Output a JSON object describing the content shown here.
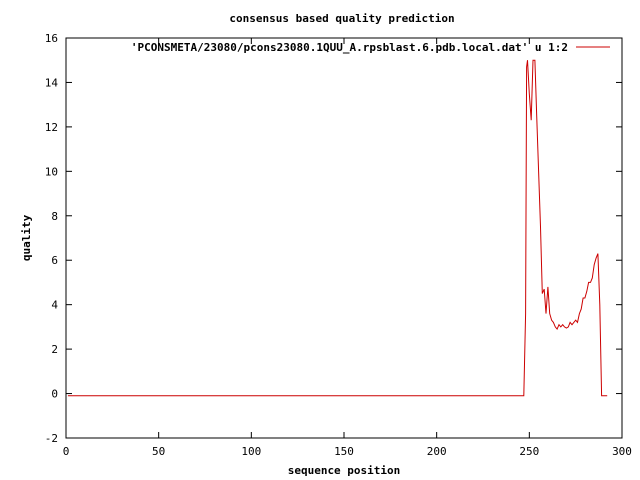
{
  "chart_data": {
    "type": "line",
    "title": "consensus based quality prediction",
    "xlabel": "sequence position",
    "ylabel": "quality",
    "xlim": [
      0,
      300
    ],
    "ylim": [
      -2,
      16
    ],
    "xticks": [
      0,
      50,
      100,
      150,
      200,
      250,
      300
    ],
    "yticks": [
      -2,
      0,
      2,
      4,
      6,
      8,
      10,
      12,
      14,
      16
    ],
    "grid": false,
    "legend_position": "top-right",
    "colors": {
      "series": "#cc0000",
      "axes": "#000000"
    },
    "series": [
      {
        "name": "'PCONSMETA/23080/pcons23080.1QUU_A.rpsblast.6.pdb.local.dat' u 1:2",
        "x": [
          1,
          247,
          248,
          248.5,
          249,
          250,
          251,
          252,
          253,
          254,
          255,
          256,
          257,
          258,
          259,
          260,
          261,
          262,
          263,
          264,
          265,
          266,
          267,
          268,
          269,
          270,
          271,
          272,
          273,
          274,
          275,
          276,
          277,
          278,
          279,
          280,
          281,
          282,
          283,
          284,
          285,
          286,
          287,
          288,
          289,
          290,
          291,
          292
        ],
        "y": [
          -0.1,
          -0.1,
          3.6,
          14.7,
          15.0,
          13.5,
          12.3,
          15.0,
          15.0,
          12.5,
          10.0,
          7.5,
          4.5,
          4.7,
          3.6,
          4.8,
          3.6,
          3.3,
          3.2,
          3.0,
          2.9,
          3.1,
          3.0,
          3.1,
          3.0,
          2.95,
          3.0,
          3.2,
          3.1,
          3.2,
          3.3,
          3.2,
          3.6,
          3.8,
          4.3,
          4.3,
          4.6,
          5.0,
          5.0,
          5.2,
          5.8,
          6.1,
          6.3,
          4.0,
          -0.1,
          -0.1,
          -0.1,
          -0.1
        ]
      }
    ]
  }
}
